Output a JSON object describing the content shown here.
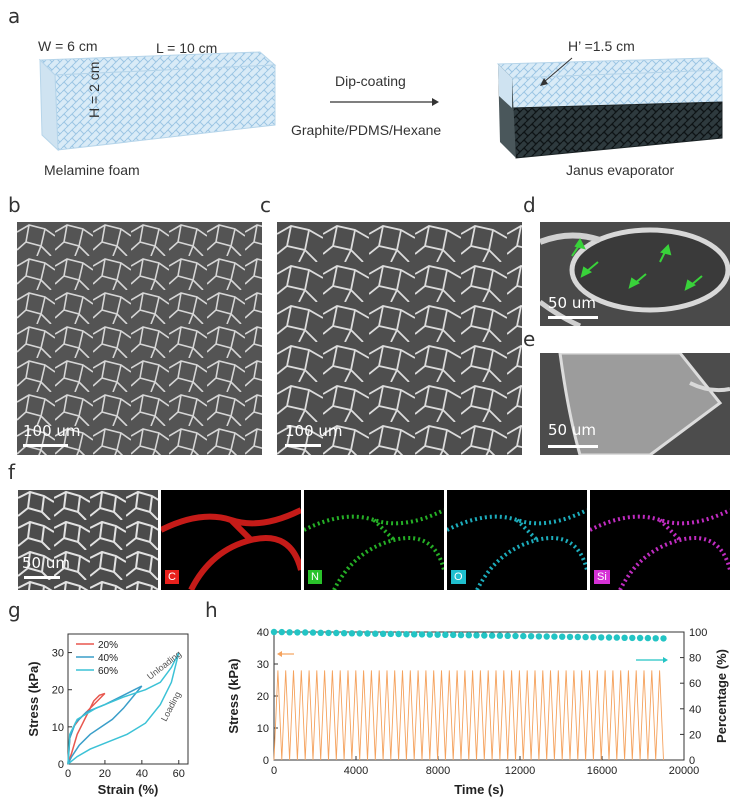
{
  "panel_a": {
    "label": "a",
    "foam_width": "W = 6 cm",
    "foam_length": "L = 10 cm",
    "foam_height": "H = 2 cm",
    "foam_caption": "Melamine foam",
    "process_top": "Dip-coating",
    "process_bottom": "Graphite/PDMS/Hexane",
    "janus_height": "H’ =1.5 cm",
    "janus_caption": "Janus evaporator"
  },
  "panel_b": {
    "label": "b",
    "scale": "100 um"
  },
  "panel_c": {
    "label": "c",
    "scale": "100 um"
  },
  "panel_d": {
    "label": "d",
    "scale": "50 um"
  },
  "panel_e": {
    "label": "e",
    "scale": "50 um"
  },
  "panel_f": {
    "label": "f",
    "scale": "50 um",
    "elements": [
      {
        "symbol": "C",
        "color": "#e8201c"
      },
      {
        "symbol": "N",
        "color": "#29c22a"
      },
      {
        "symbol": "O",
        "color": "#1fbfcf"
      },
      {
        "symbol": "Si",
        "color": "#d531d6"
      }
    ]
  },
  "panel_g": {
    "label": "g",
    "ylabel": "Stress (kPa)",
    "xlabel": "Strain (%)",
    "annot_unloading": "Unloading",
    "annot_loading": "Loading"
  },
  "panel_h": {
    "label": "h",
    "ylabel_left": "Stress (kPa)",
    "ylabel_right": "Percentage (%)",
    "xlabel": "Time (s)"
  },
  "chart_data": [
    {
      "type": "line",
      "xlabel": "Strain (%)",
      "ylabel": "Stress (kPa)",
      "xlim": [
        0,
        65
      ],
      "ylim": [
        0,
        35
      ],
      "xticks": [
        0,
        20,
        40,
        60
      ],
      "yticks": [
        0,
        10,
        20,
        30
      ],
      "series": [
        {
          "name": "20%",
          "color": "#e8574e",
          "loading": [
            [
              0,
              0
            ],
            [
              1,
              7
            ],
            [
              3,
              10
            ],
            [
              6,
              12
            ],
            [
              10,
              14
            ],
            [
              14,
              16
            ],
            [
              18,
              18
            ],
            [
              20,
              19
            ]
          ],
          "unloading": [
            [
              20,
              19
            ],
            [
              17,
              18.5
            ],
            [
              14,
              17
            ],
            [
              11,
              14
            ],
            [
              8,
              11
            ],
            [
              5,
              8
            ],
            [
              2,
              3
            ],
            [
              0,
              0
            ]
          ]
        },
        {
          "name": "40%",
          "color": "#3a9ec9",
          "loading": [
            [
              0,
              0
            ],
            [
              1,
              7
            ],
            [
              4,
              11
            ],
            [
              10,
              14
            ],
            [
              20,
              16
            ],
            [
              30,
              18.5
            ],
            [
              36,
              20
            ],
            [
              40,
              21
            ]
          ],
          "unloading": [
            [
              40,
              21
            ],
            [
              35,
              18
            ],
            [
              30,
              15
            ],
            [
              24,
              12
            ],
            [
              18,
              10
            ],
            [
              12,
              8
            ],
            [
              6,
              5
            ],
            [
              2,
              2
            ],
            [
              0,
              0
            ]
          ]
        },
        {
          "name": "60%",
          "color": "#3cc2d6",
          "loading": [
            [
              0,
              0
            ],
            [
              1,
              8
            ],
            [
              5,
              12
            ],
            [
              15,
              15
            ],
            [
              30,
              18
            ],
            [
              42,
              20
            ],
            [
              50,
              22
            ],
            [
              56,
              26
            ],
            [
              60,
              30
            ]
          ],
          "unloading": [
            [
              60,
              30
            ],
            [
              56,
              22
            ],
            [
              50,
              16
            ],
            [
              42,
              11
            ],
            [
              32,
              8
            ],
            [
              22,
              6
            ],
            [
              12,
              4
            ],
            [
              5,
              2
            ],
            [
              0,
              0
            ]
          ]
        }
      ]
    },
    {
      "type": "line",
      "xlabel": "Time (s)",
      "ylabel": "Stress (kPa)",
      "y2label": "Percentage (%)",
      "xlim": [
        0,
        20000
      ],
      "ylim": [
        0,
        40
      ],
      "y2lim": [
        0,
        100
      ],
      "xticks": [
        0,
        4000,
        8000,
        12000,
        16000,
        20000
      ],
      "yticks": [
        0,
        10,
        20,
        30,
        40
      ],
      "y2ticks": [
        0,
        20,
        40,
        60,
        80,
        100
      ],
      "series": [
        {
          "name": "Stress",
          "axis": "left",
          "color": "#f5a25d",
          "cycles": 50,
          "t_start": 0,
          "t_end": 19000,
          "peak": 28,
          "min": 0
        },
        {
          "name": "Percentage",
          "axis": "right",
          "color": "#23c4c4",
          "t_start": 0,
          "t_end": 19000,
          "step": 380,
          "start": 100,
          "end": 95
        }
      ]
    }
  ]
}
